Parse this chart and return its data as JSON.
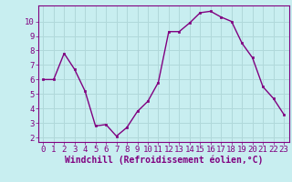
{
  "x": [
    0,
    1,
    2,
    3,
    4,
    5,
    6,
    7,
    8,
    9,
    10,
    11,
    12,
    13,
    14,
    15,
    16,
    17,
    18,
    19,
    20,
    21,
    22,
    23
  ],
  "y": [
    6.0,
    6.0,
    7.8,
    6.7,
    5.2,
    2.8,
    2.9,
    2.1,
    2.7,
    3.8,
    4.5,
    5.8,
    9.3,
    9.3,
    9.9,
    10.6,
    10.7,
    10.3,
    10.0,
    8.5,
    7.5,
    5.5,
    4.7,
    3.6
  ],
  "line_color": "#800080",
  "marker_color": "#800080",
  "bg_color": "#c8eef0",
  "grid_color": "#b0d8da",
  "xlabel": "Windchill (Refroidissement éolien,°C)",
  "xlabel_color": "#800080",
  "tick_color": "#800080",
  "spine_color": "#800080",
  "xlim": [
    -0.5,
    23.5
  ],
  "ylim": [
    1.7,
    11.1
  ],
  "yticks": [
    2,
    3,
    4,
    5,
    6,
    7,
    8,
    9,
    10
  ],
  "xtick_labels": [
    "0",
    "1",
    "2",
    "3",
    "4",
    "5",
    "6",
    "7",
    "8",
    "9",
    "10",
    "11",
    "12",
    "13",
    "14",
    "15",
    "16",
    "17",
    "18",
    "19",
    "20",
    "21",
    "22",
    "23"
  ],
  "font_size": 6.5,
  "xlabel_font_size": 7,
  "line_width": 1.0,
  "marker_size": 2.0
}
